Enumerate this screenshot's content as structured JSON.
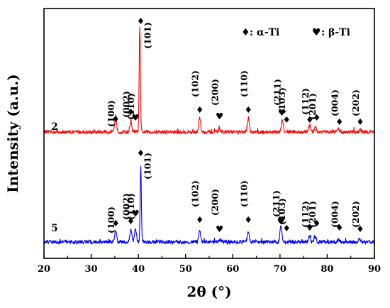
{
  "chart_data": {
    "type": "line",
    "xlabel": "2θ (°)",
    "ylabel": "Intensity (a.u.)",
    "xlim": [
      20,
      90
    ],
    "xticks": [
      "20",
      "30",
      "40",
      "50",
      "60",
      "70",
      "80",
      "90"
    ],
    "grid": false,
    "legend": {
      "placement": "top-right",
      "entries": [
        {
          "symbol": "♦",
          "label": ": α-Ti"
        },
        {
          "symbol": "♥",
          "label": ": β-Ti"
        }
      ]
    },
    "series": [
      {
        "name": "2",
        "color": "#ff0000",
        "peaks": [
          {
            "x": 35.2,
            "h": 14
          },
          {
            "x": 38.4,
            "h": 10
          },
          {
            "x": 40.3,
            "h": 94
          },
          {
            "x": 53.0,
            "h": 13
          },
          {
            "x": 57.2,
            "h": 2
          },
          {
            "x": 63.3,
            "h": 13
          },
          {
            "x": 70.5,
            "h": 10
          },
          {
            "x": 76.3,
            "h": 6
          },
          {
            "x": 77.5,
            "h": 5
          },
          {
            "x": 82.4,
            "h": 2
          },
          {
            "x": 87.0,
            "h": 2
          }
        ]
      },
      {
        "name": "5",
        "color": "#0000ff",
        "peaks": [
          {
            "x": 35.2,
            "h": 10
          },
          {
            "x": 38.4,
            "h": 11
          },
          {
            "x": 39.4,
            "h": 12
          },
          {
            "x": 40.5,
            "h": 68
          },
          {
            "x": 53.0,
            "h": 10
          },
          {
            "x": 57.2,
            "h": 2
          },
          {
            "x": 63.3,
            "h": 10
          },
          {
            "x": 70.2,
            "h": 14
          },
          {
            "x": 76.3,
            "h": 5
          },
          {
            "x": 77.5,
            "h": 5
          },
          {
            "x": 82.4,
            "h": 2
          },
          {
            "x": 86.8,
            "h": 3
          }
        ]
      }
    ],
    "annotations": [
      {
        "text": "(100)",
        "x": 35.2,
        "series": "2",
        "marker": "♦"
      },
      {
        "text": "(002)",
        "x": 38.4,
        "series": "2",
        "marker": "♦"
      },
      {
        "text": "(110)",
        "x": 39.4,
        "series": "2",
        "marker": "♥"
      },
      {
        "text": "(101)",
        "x": 40.5,
        "series": "2",
        "marker": "♦"
      },
      {
        "text": "(102)",
        "x": 53.0,
        "series": "2",
        "marker": "♦"
      },
      {
        "text": "(200)",
        "x": 57.2,
        "series": "2",
        "marker": "♥"
      },
      {
        "text": "(110)",
        "x": 63.3,
        "series": "2",
        "marker": "♦"
      },
      {
        "text": "(211)",
        "x": 70.4,
        "series": "2",
        "marker": "♥"
      },
      {
        "text": "(103)",
        "x": 71.4,
        "series": "2",
        "marker": "♦"
      },
      {
        "text": "(112)",
        "x": 76.3,
        "series": "2",
        "marker": "♦"
      },
      {
        "text": "(201)",
        "x": 77.8,
        "series": "2",
        "marker": "♦"
      },
      {
        "text": "(004)",
        "x": 82.6,
        "series": "2",
        "marker": "♦"
      },
      {
        "text": "(202)",
        "x": 87.0,
        "series": "2",
        "marker": "♦"
      },
      {
        "text": "(100)",
        "x": 35.2,
        "series": "5",
        "marker": "♦"
      },
      {
        "text": "(002)",
        "x": 38.4,
        "series": "5",
        "marker": "♦"
      },
      {
        "text": "(110)",
        "x": 39.4,
        "series": "5",
        "marker": "♥"
      },
      {
        "text": "(101)",
        "x": 40.5,
        "series": "5",
        "marker": "♦"
      },
      {
        "text": "(102)",
        "x": 53.0,
        "series": "5",
        "marker": "♦"
      },
      {
        "text": "(200)",
        "x": 57.2,
        "series": "5",
        "marker": "♥"
      },
      {
        "text": "(110)",
        "x": 63.3,
        "series": "5",
        "marker": "♦"
      },
      {
        "text": "(211)",
        "x": 70.2,
        "series": "5",
        "marker": "♥"
      },
      {
        "text": "(103)",
        "x": 71.4,
        "series": "5",
        "marker": "♦"
      },
      {
        "text": "(112)",
        "x": 76.3,
        "series": "5",
        "marker": "♦"
      },
      {
        "text": "(201)",
        "x": 77.8,
        "series": "5",
        "marker": "♦"
      },
      {
        "text": "(004)",
        "x": 82.6,
        "series": "5",
        "marker": "♦"
      },
      {
        "text": "(202)",
        "x": 87.0,
        "series": "5",
        "marker": "♦"
      }
    ]
  }
}
